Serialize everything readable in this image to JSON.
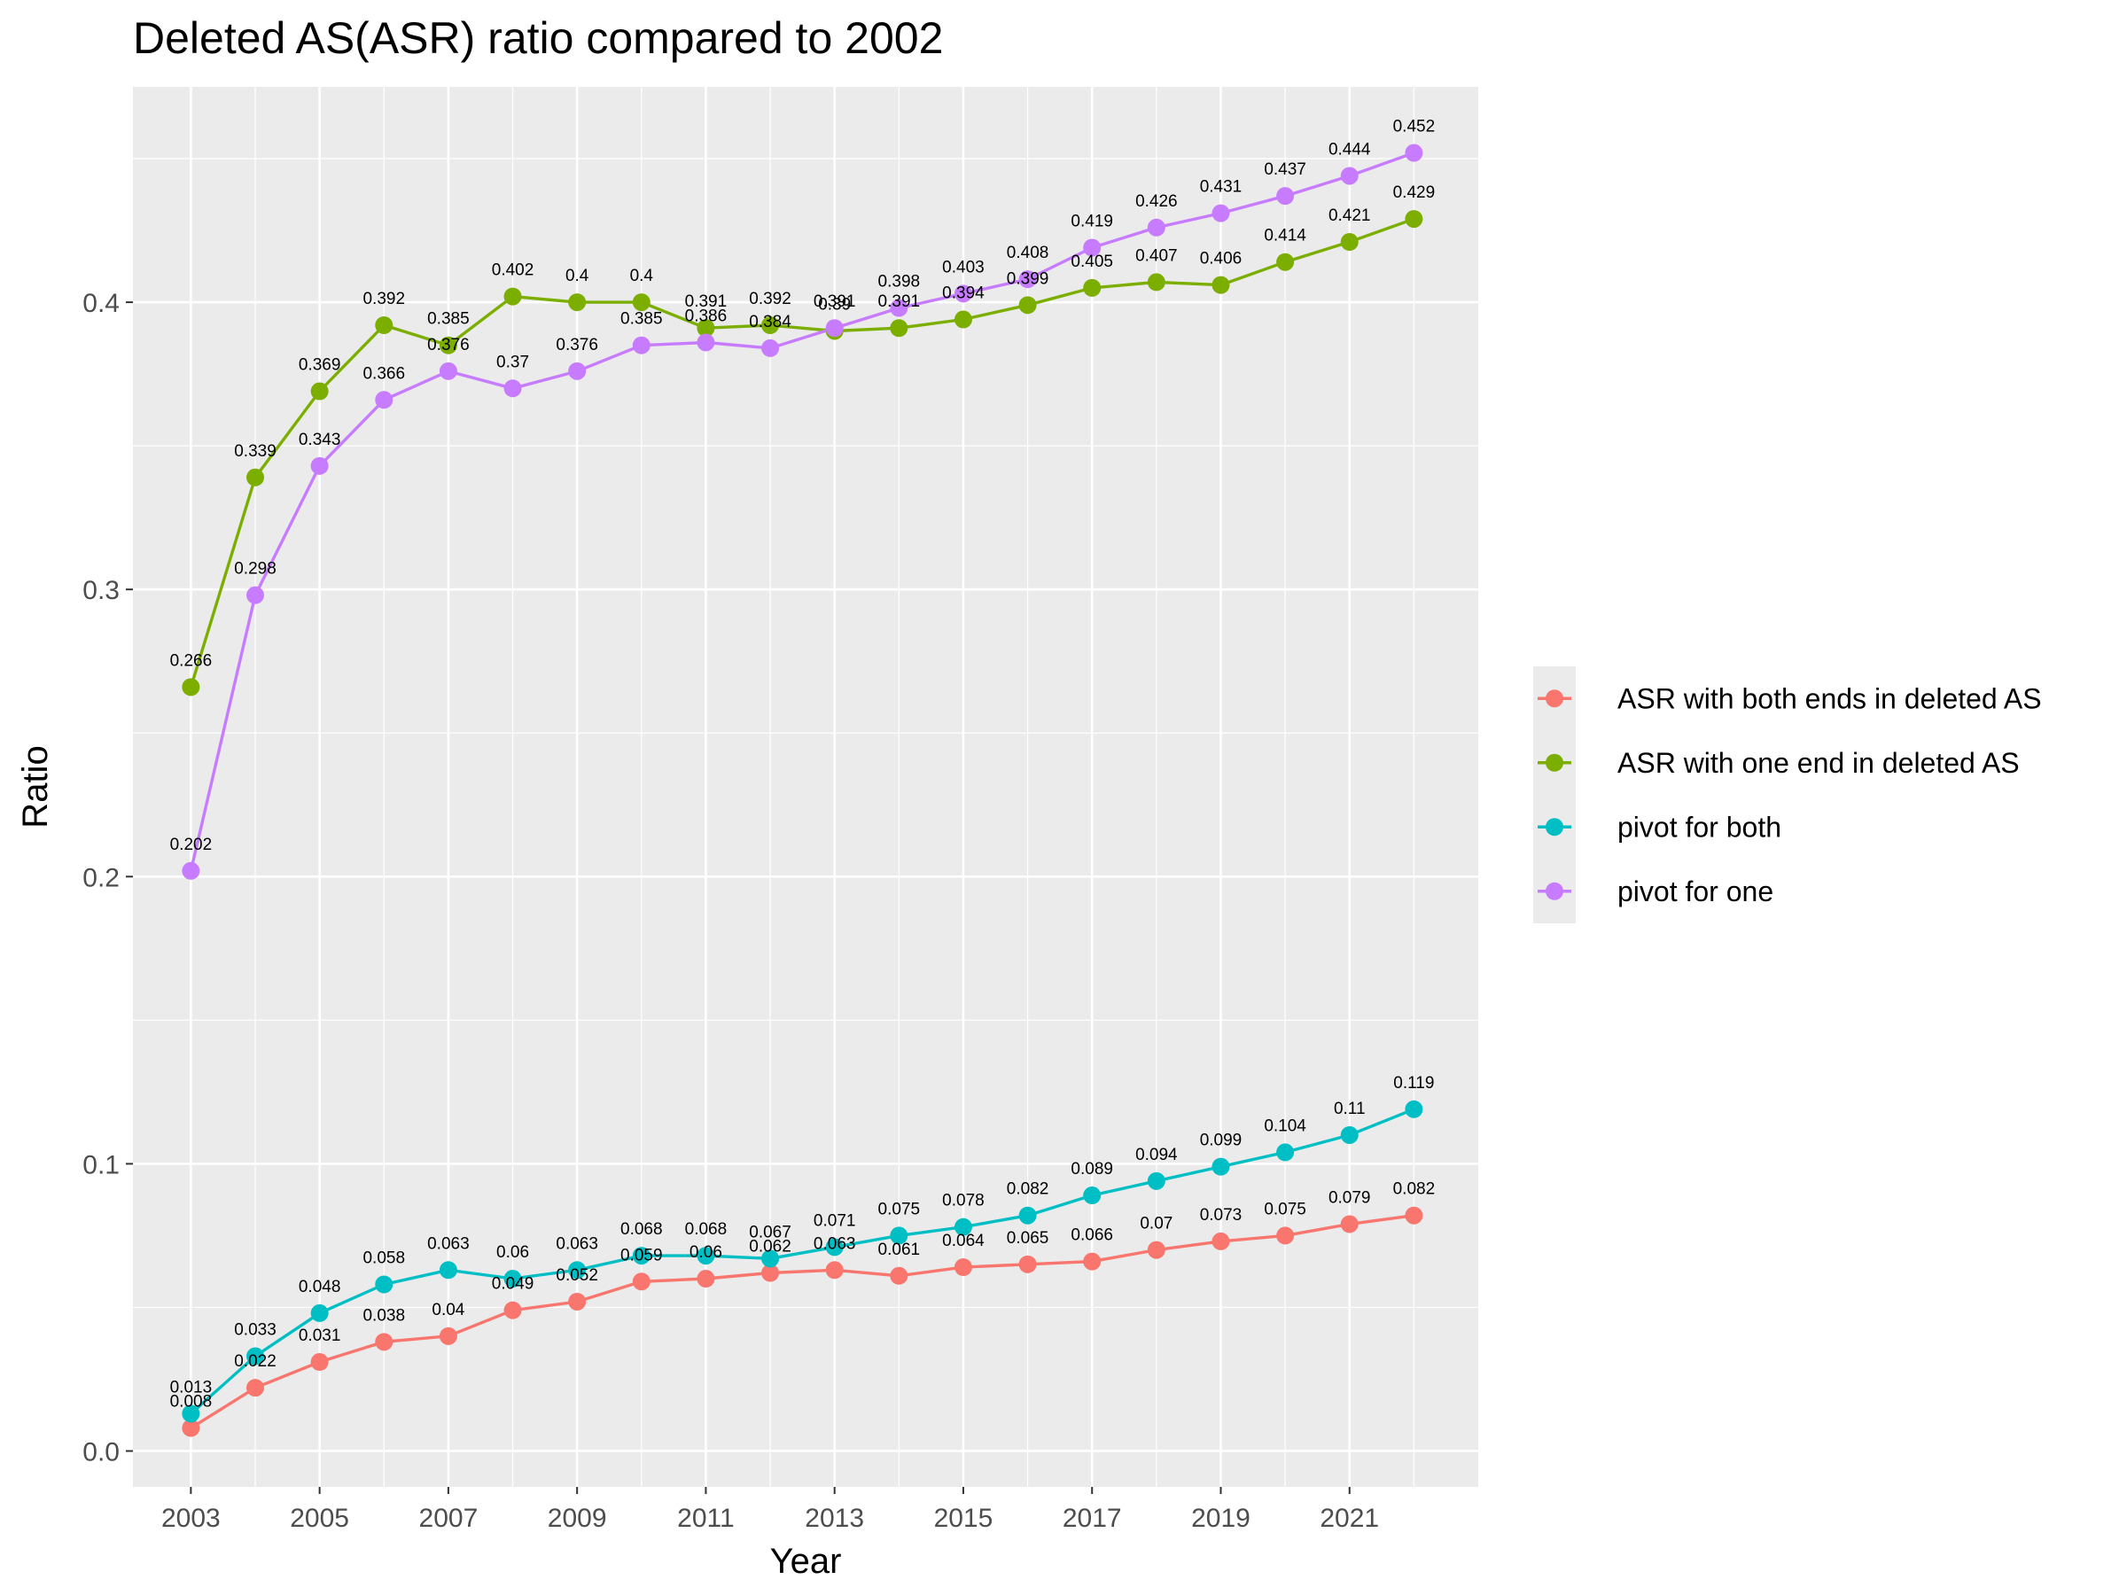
{
  "chart_data": {
    "type": "line",
    "title": "Deleted AS(ASR) ratio compared to 2002",
    "xlabel": "Year",
    "ylabel": "Ratio",
    "x": [
      2003,
      2004,
      2005,
      2006,
      2007,
      2008,
      2009,
      2010,
      2011,
      2012,
      2013,
      2014,
      2015,
      2016,
      2017,
      2018,
      2019,
      2020,
      2021,
      2022
    ],
    "x_ticks": [
      "2003",
      "2005",
      "2007",
      "2009",
      "2011",
      "2013",
      "2015",
      "2017",
      "2019",
      "2021"
    ],
    "y_ticks": [
      "0.0",
      "0.1",
      "0.2",
      "0.3",
      "0.4"
    ],
    "xlim": [
      2002.1,
      2023.0
    ],
    "ylim": [
      -0.0125,
      0.475
    ],
    "grid": true,
    "legend_position": "right",
    "series": [
      {
        "name": "ASR with both ends in deleted AS",
        "color": "#F8766D",
        "values": [
          0.008,
          0.022,
          0.031,
          0.038,
          0.04,
          0.049,
          0.052,
          0.059,
          0.06,
          0.062,
          0.063,
          0.061,
          0.064,
          0.065,
          0.066,
          0.07,
          0.073,
          0.075,
          0.079,
          0.082
        ],
        "labels": [
          "0.008",
          "0.022",
          "0.031",
          "0.038",
          "0.04",
          "0.049",
          "0.052",
          "0.059",
          "0.06",
          "0.062",
          "0.063",
          "0.061",
          "0.064",
          "0.065",
          "0.066",
          "0.07",
          "0.073",
          "0.075",
          "0.079",
          "0.082"
        ]
      },
      {
        "name": "ASR with one end in deleted AS",
        "color": "#7CAE00",
        "values": [
          0.266,
          0.339,
          0.369,
          0.392,
          0.385,
          0.402,
          0.4,
          0.4,
          0.391,
          0.392,
          0.39,
          0.391,
          0.394,
          0.399,
          0.405,
          0.407,
          0.406,
          0.414,
          0.421,
          0.429
        ],
        "labels": [
          "0.266",
          "0.339",
          "0.369",
          "0.392",
          "0.385",
          "0.402",
          "0.4",
          "0.4",
          "0.391",
          "0.392",
          "0.39",
          "0.391",
          "0.394",
          "0.399",
          "0.405",
          "0.407",
          "0.406",
          "0.414",
          "0.421",
          "0.429"
        ]
      },
      {
        "name": "pivot for both",
        "color": "#00BFC4",
        "values": [
          0.013,
          0.033,
          0.048,
          0.058,
          0.063,
          0.06,
          0.063,
          0.068,
          0.068,
          0.067,
          0.071,
          0.075,
          0.078,
          0.082,
          0.089,
          0.094,
          0.099,
          0.104,
          0.11,
          0.119
        ],
        "labels": [
          "0.013",
          "0.033",
          "0.048",
          "0.058",
          "0.063",
          "0.06",
          "0.063",
          "0.068",
          "0.068",
          "0.067",
          "0.071",
          "0.075",
          "0.078",
          "0.082",
          "0.089",
          "0.094",
          "0.099",
          "0.104",
          "0.11",
          "0.119"
        ]
      },
      {
        "name": "pivot for one",
        "color": "#C77CFF",
        "values": [
          0.202,
          0.298,
          0.343,
          0.366,
          0.376,
          0.37,
          0.376,
          0.385,
          0.386,
          0.384,
          0.391,
          0.398,
          0.403,
          0.408,
          0.419,
          0.426,
          0.431,
          0.437,
          0.444,
          0.452
        ],
        "labels": [
          "0.202",
          "0.298",
          "0.343",
          "0.366",
          "0.376",
          "0.37",
          "0.376",
          "0.385",
          "0.386",
          "0.384",
          "0.391",
          "0.398",
          "0.403",
          "0.408",
          "0.419",
          "0.426",
          "0.431",
          "0.437",
          "0.444",
          "0.452"
        ]
      }
    ]
  }
}
